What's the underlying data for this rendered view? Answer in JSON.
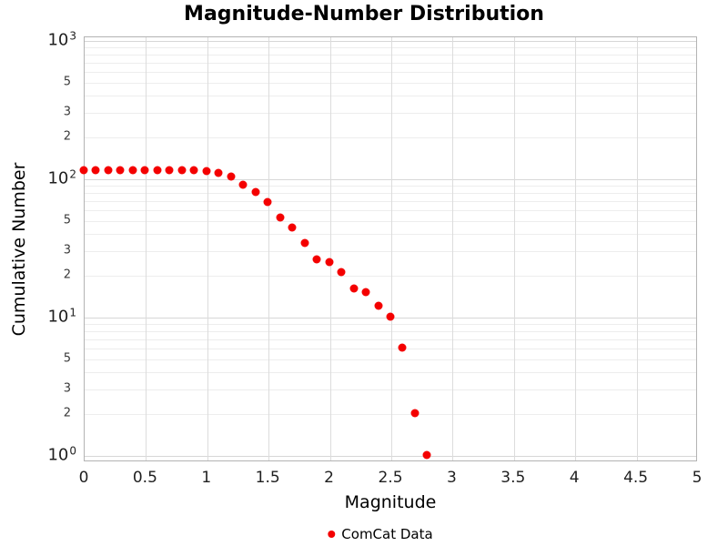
{
  "chart_data": {
    "type": "scatter",
    "title": "Magnitude-Number Distribution",
    "xlabel": "Magnitude",
    "ylabel": "Cumulative Number",
    "y_scale": "log10",
    "xlim": [
      0,
      5
    ],
    "ylim": [
      1,
      1000
    ],
    "grid": true,
    "legend_position": "bottom-center",
    "marker_color": "#f40000",
    "x_ticks": [
      {
        "value": 0,
        "label": "0"
      },
      {
        "value": 0.5,
        "label": "0.5"
      },
      {
        "value": 1,
        "label": "1"
      },
      {
        "value": 1.5,
        "label": "1.5"
      },
      {
        "value": 2,
        "label": "2"
      },
      {
        "value": 2.5,
        "label": "2.5"
      },
      {
        "value": 3,
        "label": "3"
      },
      {
        "value": 3.5,
        "label": "3.5"
      },
      {
        "value": 4,
        "label": "4"
      },
      {
        "value": 4.5,
        "label": "4.5"
      },
      {
        "value": 5,
        "label": "5"
      }
    ],
    "y_major_ticks": [
      {
        "value": 1,
        "base": "10",
        "exp": "0"
      },
      {
        "value": 10,
        "base": "10",
        "exp": "1"
      },
      {
        "value": 100,
        "base": "10",
        "exp": "2"
      },
      {
        "value": 1000,
        "base": "10",
        "exp": "3"
      }
    ],
    "y_minor_labeled_ticks": [
      {
        "value": 2,
        "label": "2"
      },
      {
        "value": 3,
        "label": "3"
      },
      {
        "value": 5,
        "label": "5"
      },
      {
        "value": 20,
        "label": "2"
      },
      {
        "value": 30,
        "label": "3"
      },
      {
        "value": 50,
        "label": "5"
      },
      {
        "value": 200,
        "label": "2"
      },
      {
        "value": 300,
        "label": "3"
      },
      {
        "value": 500,
        "label": "5"
      }
    ],
    "series": [
      {
        "name": "ComCat Data",
        "color": "#f40000",
        "marker": "circle",
        "x": [
          0.0,
          0.1,
          0.2,
          0.3,
          0.4,
          0.5,
          0.6,
          0.7,
          0.8,
          0.9,
          1.0,
          1.1,
          1.2,
          1.3,
          1.4,
          1.5,
          1.6,
          1.7,
          1.8,
          1.9,
          2.0,
          2.1,
          2.2,
          2.3,
          2.4,
          2.5,
          2.6,
          2.7,
          2.8
        ],
        "y": [
          115,
          115,
          115,
          115,
          115,
          115,
          115,
          115,
          115,
          114,
          113,
          110,
          103,
          90,
          80,
          67,
          52,
          44,
          34,
          26,
          25,
          21,
          16,
          15,
          12,
          10,
          6,
          2,
          1
        ]
      }
    ]
  }
}
